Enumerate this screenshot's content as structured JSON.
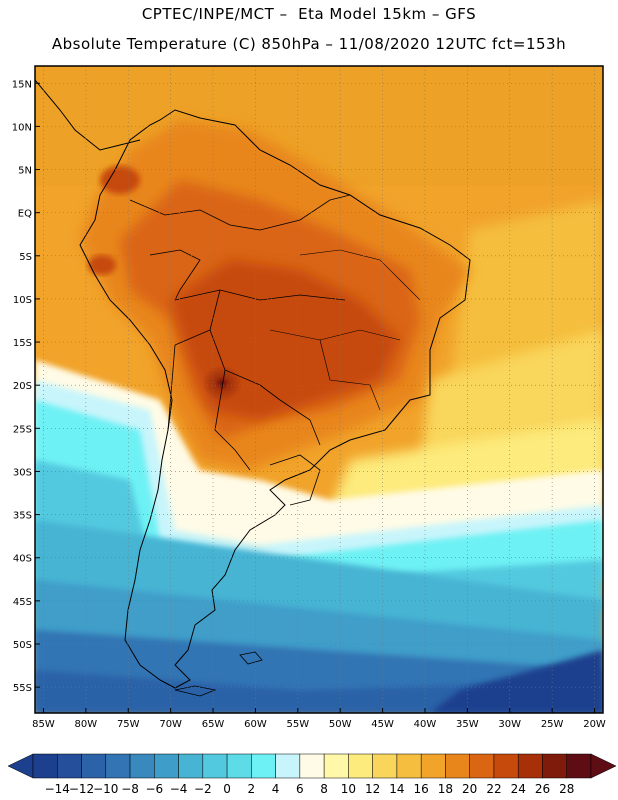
{
  "header": {
    "line1": "CPTEC/INPE/MCT –  Eta Model 15km – GFS",
    "line2": "Absolute Temperature (C) 850hPa – 11/08/2020 12UTC fct=153h"
  },
  "map": {
    "lat_labels": [
      "15N",
      "10N",
      "5N",
      "EQ",
      "5S",
      "10S",
      "15S",
      "20S",
      "25S",
      "30S",
      "35S",
      "40S",
      "45S",
      "50S",
      "55S"
    ],
    "lon_labels": [
      "85W",
      "80W",
      "75W",
      "70W",
      "65W",
      "60W",
      "55W",
      "50W",
      "45W",
      "40W",
      "35W",
      "30W",
      "25W",
      "20W"
    ],
    "lon_range": [
      -86,
      -19
    ],
    "lat_range": [
      -58,
      17
    ],
    "gridlines": "dotted"
  },
  "colorbar": {
    "labels": [
      "-14",
      "-12",
      "-10",
      "-8",
      "-6",
      "-4",
      "-2",
      "0",
      "2",
      "4",
      "6",
      "8",
      "10",
      "12",
      "14",
      "16",
      "18",
      "20",
      "22",
      "24",
      "26",
      "28"
    ],
    "colors": [
      "#1c3f8e",
      "#254f9b",
      "#2c62a8",
      "#3375b4",
      "#3989bf",
      "#3f9ec9",
      "#47b4d3",
      "#52c9df",
      "#5ddce8",
      "#6ef1f4",
      "#c8f5fb",
      "#fffbe6",
      "#fff8a8",
      "#fdeb7d",
      "#f9d65b",
      "#f5be3e",
      "#f1a32a",
      "#e8861c",
      "#da6512",
      "#c64a0c",
      "#a73008",
      "#7f1b0a",
      "#5e0d14"
    ]
  }
}
